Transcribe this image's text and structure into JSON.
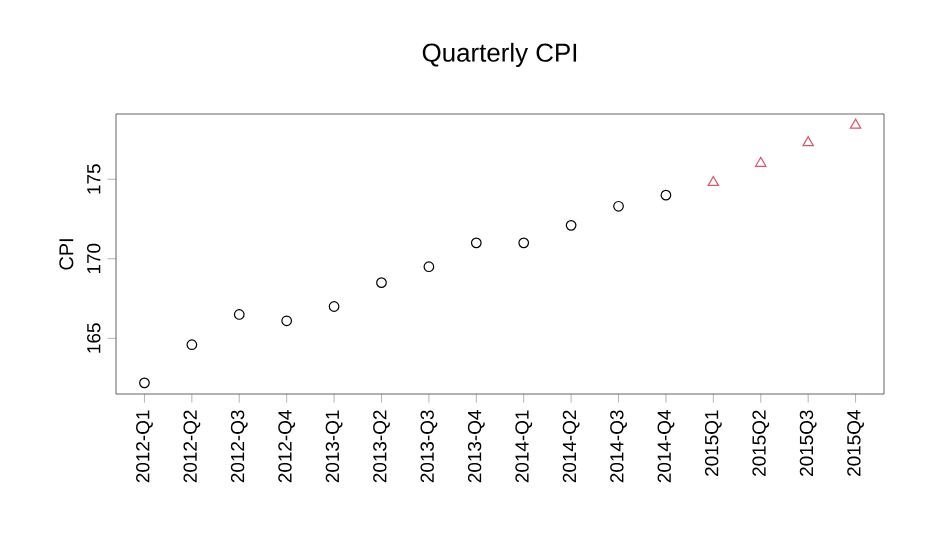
{
  "chart_data": {
    "type": "scatter",
    "title": "Quarterly CPI",
    "ylabel": "CPI",
    "categories": [
      "2012-Q1",
      "2012-Q2",
      "2012-Q3",
      "2012-Q4",
      "2013-Q1",
      "2013-Q2",
      "2013-Q3",
      "2013-Q4",
      "2014-Q1",
      "2014-Q2",
      "2014-Q3",
      "2014-Q4",
      "2015Q1",
      "2015Q2",
      "2015Q3",
      "2015Q4"
    ],
    "series": [
      {
        "color": "#000000",
        "marker": "circle",
        "values": [
          162.2,
          164.6,
          166.5,
          166.1,
          167.0,
          168.5,
          169.5,
          171.0,
          171.0,
          172.1,
          173.3,
          174.0,
          null,
          null,
          null,
          null
        ]
      },
      {
        "color": "#df536b",
        "marker": "triangle",
        "values": [
          null,
          null,
          null,
          null,
          null,
          null,
          null,
          null,
          null,
          null,
          null,
          null,
          174.8,
          176.0,
          177.3,
          178.4
        ]
      }
    ],
    "ylim": [
      161.5,
      179.1
    ],
    "yticks": [
      165,
      170,
      175
    ],
    "grid": false
  }
}
